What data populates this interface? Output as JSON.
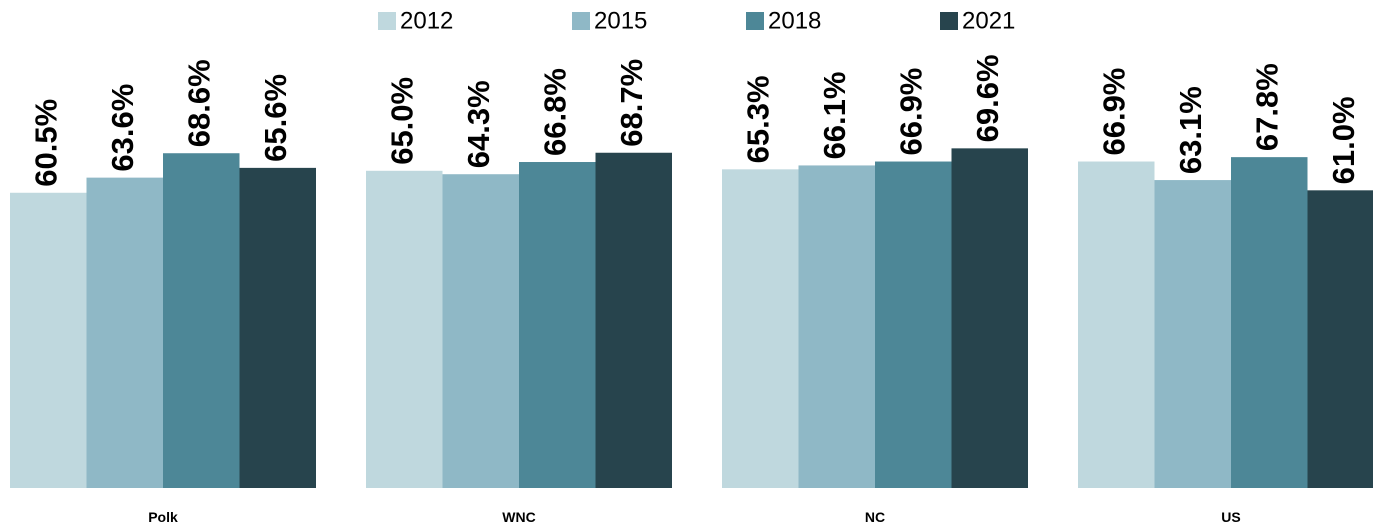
{
  "chart_data": {
    "type": "bar",
    "categories": [
      "Polk",
      "WNC",
      "NC",
      "US"
    ],
    "series": [
      {
        "name": "2012",
        "color": "#bfd8de",
        "values": [
          60.5,
          65.0,
          65.3,
          66.9
        ],
        "value_labels": [
          "60.5%",
          "65.0%",
          "65.3%",
          "66.9%"
        ]
      },
      {
        "name": "2015",
        "color": "#8fb8c6",
        "values": [
          63.6,
          64.3,
          66.1,
          63.1
        ],
        "value_labels": [
          "63.6%",
          "64.3%",
          "66.1%",
          "63.1%"
        ]
      },
      {
        "name": "2018",
        "color": "#4d8797",
        "values": [
          68.6,
          66.8,
          66.9,
          67.8
        ],
        "value_labels": [
          "68.6%",
          "66.8%",
          "66.9%",
          "67.8%"
        ]
      },
      {
        "name": "2021",
        "color": "#27444d",
        "values": [
          65.6,
          68.7,
          69.6,
          61.0
        ],
        "value_labels": [
          "65.6%",
          "68.7%",
          "69.6%",
          "61.0%"
        ]
      }
    ],
    "ylim": [
      0,
      100
    ]
  }
}
